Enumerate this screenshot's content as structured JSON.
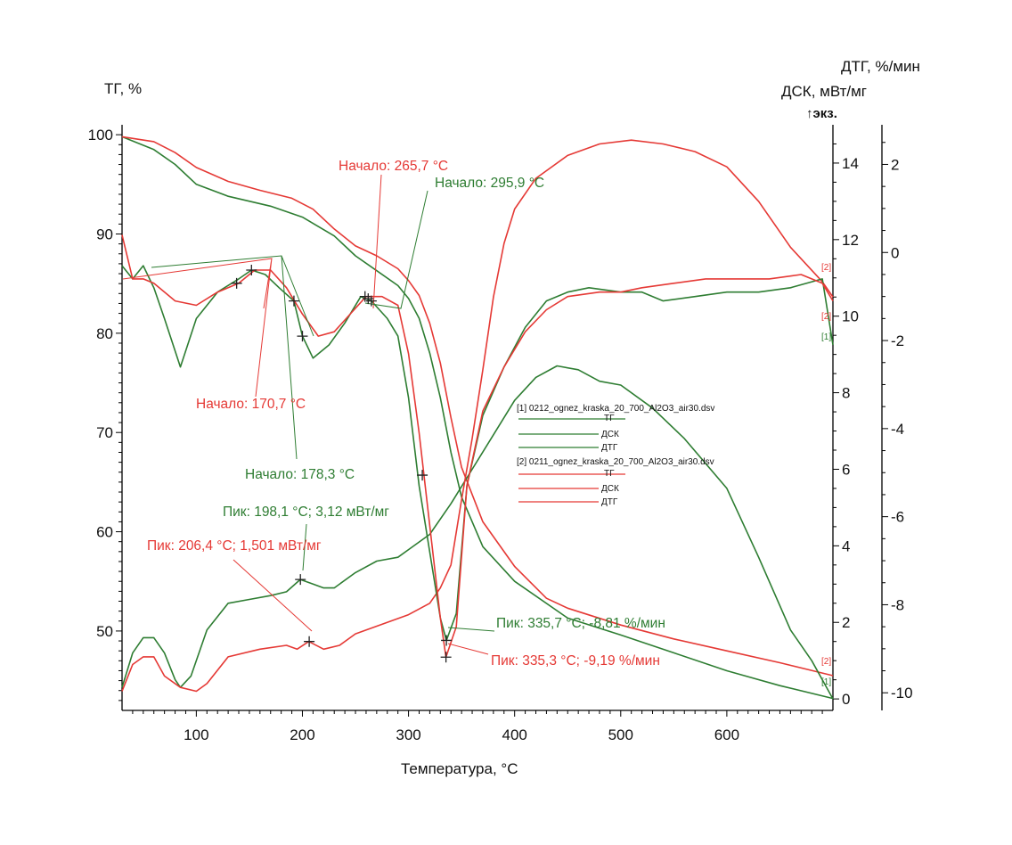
{
  "chart_data": {
    "type": "line",
    "title": "",
    "xlabel": "Температура, °C",
    "xlim": [
      30,
      700
    ],
    "x_ticks": [
      100,
      200,
      300,
      400,
      500,
      600
    ],
    "axes": {
      "tg": {
        "label": "ТГ, %",
        "lim": [
          42,
          101
        ],
        "ticks": [
          50,
          60,
          70,
          80,
          90,
          100
        ]
      },
      "dsc": {
        "label": "ДСК, мВт/мг",
        "marker": "↑экз.",
        "lim": [
          -0.3,
          15
        ],
        "ticks": [
          0,
          2,
          4,
          6,
          8,
          10,
          12,
          14
        ]
      },
      "dtg": {
        "label": "ДТГ, %/мин",
        "lim": [
          -10.4,
          2.9
        ],
        "ticks": [
          -10,
          -8,
          -6,
          -4,
          -2,
          0,
          2
        ]
      }
    },
    "colors": {
      "run1": "#2e7d32",
      "run2": "#e53935"
    },
    "legend": {
      "placement": "center-right",
      "groups": [
        {
          "file": "[1] 0212_ognez_kraska_20_700_Al2O3_air30.dsv",
          "color": "#2e7d32",
          "items": [
            "ТГ",
            "ДСК",
            "ДТГ"
          ]
        },
        {
          "file": "[2] 0211_ognez_kraska_20_700_Al2O3_air30.dsv",
          "color": "#e53935",
          "items": [
            "ТГ",
            "ДСК",
            "ДТГ"
          ]
        }
      ]
    },
    "series": [
      {
        "name": "ТГ",
        "run": "[1]",
        "axis": "tg",
        "color": "#2e7d32",
        "points": [
          [
            30,
            99.8
          ],
          [
            60,
            98.5
          ],
          [
            80,
            97
          ],
          [
            100,
            95
          ],
          [
            130,
            93.8
          ],
          [
            170,
            92.8
          ],
          [
            200,
            91.7
          ],
          [
            230,
            89.8
          ],
          [
            250,
            87.8
          ],
          [
            270,
            86.3
          ],
          [
            290,
            84.8
          ],
          [
            300,
            83.5
          ],
          [
            310,
            81.5
          ],
          [
            320,
            78
          ],
          [
            330,
            73.5
          ],
          [
            340,
            68
          ],
          [
            350,
            63.5
          ],
          [
            370,
            58.5
          ],
          [
            400,
            55
          ],
          [
            450,
            51.3
          ],
          [
            500,
            49.6
          ],
          [
            550,
            47.8
          ],
          [
            600,
            46
          ],
          [
            650,
            44.5
          ],
          [
            700,
            43.2
          ]
        ]
      },
      {
        "name": "ТГ",
        "run": "[2]",
        "axis": "tg",
        "color": "#e53935",
        "points": [
          [
            30,
            99.8
          ],
          [
            60,
            99.3
          ],
          [
            80,
            98.2
          ],
          [
            100,
            96.7
          ],
          [
            130,
            95.3
          ],
          [
            160,
            94.4
          ],
          [
            190,
            93.6
          ],
          [
            210,
            92.5
          ],
          [
            230,
            90.5
          ],
          [
            250,
            88.8
          ],
          [
            270,
            87.8
          ],
          [
            290,
            86.5
          ],
          [
            300,
            85.3
          ],
          [
            310,
            83.8
          ],
          [
            320,
            81
          ],
          [
            330,
            77
          ],
          [
            340,
            71.5
          ],
          [
            350,
            66.5
          ],
          [
            370,
            61
          ],
          [
            400,
            56.5
          ],
          [
            430,
            53.3
          ],
          [
            450,
            52.3
          ],
          [
            500,
            50.6
          ],
          [
            550,
            49.2
          ],
          [
            600,
            48
          ],
          [
            650,
            46.8
          ],
          [
            700,
            45.5
          ]
        ]
      },
      {
        "name": "ДСК",
        "run": "[1]",
        "axis": "dsc",
        "color": "#2e7d32",
        "points": [
          [
            30,
            0.3
          ],
          [
            40,
            1.2
          ],
          [
            50,
            1.6
          ],
          [
            60,
            1.6
          ],
          [
            70,
            1.2
          ],
          [
            80,
            0.5
          ],
          [
            85,
            0.3
          ],
          [
            95,
            0.6
          ],
          [
            110,
            1.8
          ],
          [
            130,
            2.5
          ],
          [
            150,
            2.6
          ],
          [
            170,
            2.7
          ],
          [
            185,
            2.8
          ],
          [
            198,
            3.12
          ],
          [
            210,
            3.0
          ],
          [
            220,
            2.9
          ],
          [
            230,
            2.9
          ],
          [
            250,
            3.3
          ],
          [
            270,
            3.6
          ],
          [
            290,
            3.7
          ],
          [
            300,
            3.9
          ],
          [
            320,
            4.3
          ],
          [
            340,
            5.1
          ],
          [
            360,
            6.0
          ],
          [
            380,
            6.9
          ],
          [
            400,
            7.8
          ],
          [
            420,
            8.4
          ],
          [
            440,
            8.7
          ],
          [
            460,
            8.6
          ],
          [
            480,
            8.3
          ],
          [
            500,
            8.2
          ],
          [
            530,
            7.6
          ],
          [
            560,
            6.8
          ],
          [
            600,
            5.5
          ],
          [
            630,
            3.7
          ],
          [
            660,
            1.8
          ],
          [
            680,
            1.0
          ],
          [
            700,
            0
          ]
        ]
      },
      {
        "name": "ДСК",
        "run": "[2]",
        "axis": "dsc",
        "color": "#e53935",
        "points": [
          [
            30,
            0.2
          ],
          [
            40,
            0.9
          ],
          [
            50,
            1.1
          ],
          [
            60,
            1.1
          ],
          [
            70,
            0.6
          ],
          [
            85,
            0.3
          ],
          [
            100,
            0.2
          ],
          [
            110,
            0.4
          ],
          [
            130,
            1.1
          ],
          [
            160,
            1.3
          ],
          [
            185,
            1.4
          ],
          [
            195,
            1.3
          ],
          [
            206,
            1.5
          ],
          [
            220,
            1.3
          ],
          [
            235,
            1.4
          ],
          [
            250,
            1.7
          ],
          [
            270,
            1.9
          ],
          [
            300,
            2.2
          ],
          [
            320,
            2.5
          ],
          [
            330,
            2.9
          ],
          [
            340,
            3.5
          ],
          [
            350,
            5.2
          ],
          [
            360,
            6.8
          ],
          [
            370,
            8.6
          ],
          [
            380,
            10.5
          ],
          [
            390,
            11.9
          ],
          [
            400,
            12.8
          ],
          [
            420,
            13.6
          ],
          [
            450,
            14.2
          ],
          [
            480,
            14.5
          ],
          [
            510,
            14.6
          ],
          [
            540,
            14.5
          ],
          [
            570,
            14.3
          ],
          [
            600,
            13.9
          ],
          [
            630,
            13.0
          ],
          [
            660,
            11.8
          ],
          [
            690,
            10.9
          ],
          [
            700,
            10.5
          ]
        ]
      },
      {
        "name": "ДТГ",
        "run": "[1]",
        "axis": "dtg",
        "color": "#2e7d32",
        "points": [
          [
            30,
            -0.3
          ],
          [
            40,
            -0.6
          ],
          [
            50,
            -0.3
          ],
          [
            60,
            -0.8
          ],
          [
            70,
            -1.5
          ],
          [
            85,
            -2.6
          ],
          [
            100,
            -1.5
          ],
          [
            120,
            -0.9
          ],
          [
            140,
            -0.6
          ],
          [
            152,
            -0.4
          ],
          [
            165,
            -0.5
          ],
          [
            178,
            -0.8
          ],
          [
            192,
            -1.1
          ],
          [
            200,
            -1.9
          ],
          [
            210,
            -2.4
          ],
          [
            225,
            -2.1
          ],
          [
            240,
            -1.6
          ],
          [
            255,
            -1.0
          ],
          [
            265,
            -1.1
          ],
          [
            280,
            -1.5
          ],
          [
            290,
            -1.9
          ],
          [
            300,
            -3.3
          ],
          [
            310,
            -5.3
          ],
          [
            320,
            -6.8
          ],
          [
            330,
            -8.3
          ],
          [
            335.7,
            -8.81
          ],
          [
            345,
            -8.2
          ],
          [
            355,
            -5.3
          ],
          [
            370,
            -3.7
          ],
          [
            390,
            -2.6
          ],
          [
            410,
            -1.7
          ],
          [
            430,
            -1.1
          ],
          [
            450,
            -0.9
          ],
          [
            470,
            -0.8
          ],
          [
            500,
            -0.9
          ],
          [
            520,
            -0.9
          ],
          [
            540,
            -1.1
          ],
          [
            570,
            -1.0
          ],
          [
            600,
            -0.9
          ],
          [
            630,
            -0.9
          ],
          [
            660,
            -0.8
          ],
          [
            690,
            -0.6
          ],
          [
            700,
            -2.1
          ]
        ]
      },
      {
        "name": "ДТГ",
        "run": "[2]",
        "axis": "dtg",
        "color": "#e53935",
        "points": [
          [
            30,
            0.4
          ],
          [
            40,
            -0.6
          ],
          [
            50,
            -0.6
          ],
          [
            60,
            -0.7
          ],
          [
            80,
            -1.1
          ],
          [
            100,
            -1.2
          ],
          [
            120,
            -0.9
          ],
          [
            140,
            -0.7
          ],
          [
            155,
            -0.4
          ],
          [
            170,
            -0.4
          ],
          [
            185,
            -0.8
          ],
          [
            200,
            -1.4
          ],
          [
            215,
            -1.9
          ],
          [
            230,
            -1.8
          ],
          [
            245,
            -1.4
          ],
          [
            260,
            -1.0
          ],
          [
            275,
            -1.0
          ],
          [
            290,
            -1.2
          ],
          [
            300,
            -2.3
          ],
          [
            310,
            -4.1
          ],
          [
            320,
            -6.2
          ],
          [
            330,
            -8.3
          ],
          [
            335.3,
            -9.19
          ],
          [
            345,
            -8.5
          ],
          [
            355,
            -5.3
          ],
          [
            370,
            -3.6
          ],
          [
            390,
            -2.6
          ],
          [
            410,
            -1.8
          ],
          [
            430,
            -1.3
          ],
          [
            450,
            -1.0
          ],
          [
            480,
            -0.9
          ],
          [
            500,
            -0.9
          ],
          [
            520,
            -0.8
          ],
          [
            550,
            -0.7
          ],
          [
            580,
            -0.6
          ],
          [
            610,
            -0.6
          ],
          [
            640,
            -0.6
          ],
          [
            670,
            -0.5
          ],
          [
            690,
            -0.7
          ],
          [
            700,
            -1.1
          ]
        ]
      }
    ],
    "markers": [
      {
        "run": "[1]",
        "axis": "dtg",
        "x": 152,
        "y": -0.4
      },
      {
        "run": "[1]",
        "axis": "dtg",
        "x": 192,
        "y": -1.1
      },
      {
        "run": "[1]",
        "axis": "dtg",
        "x": 200,
        "y": -1.9
      },
      {
        "run": "[1]",
        "axis": "dtg",
        "x": 259,
        "y": -1.0
      },
      {
        "run": "[1]",
        "axis": "dtg",
        "x": 265,
        "y": -1.1
      },
      {
        "run": "[2]",
        "axis": "dtg",
        "x": 138,
        "y": -0.7
      },
      {
        "run": "[2]",
        "axis": "dtg",
        "x": 262,
        "y": -1.05
      },
      {
        "run": "[2]",
        "axis": "tg",
        "x": 313,
        "y": 65.7
      },
      {
        "run": "[1]",
        "axis": "dsc",
        "x": 198.1,
        "y": 3.12
      },
      {
        "run": "[2]",
        "axis": "dsc",
        "x": 206.4,
        "y": 1.5
      },
      {
        "run": "[1]",
        "axis": "dtg",
        "x": 335.7,
        "y": -8.81
      },
      {
        "run": "[2]",
        "axis": "dtg",
        "x": 335.3,
        "y": -9.19
      }
    ],
    "annotations": [
      {
        "text": "Начало: 265,7 °C",
        "color": "#e53935"
      },
      {
        "text": "Начало: 295,9 °C",
        "color": "#2e7d32"
      },
      {
        "text": "Начало: 170,7 °C",
        "color": "#e53935"
      },
      {
        "text": "Начало: 178,3 °C",
        "color": "#2e7d32"
      },
      {
        "text": "Пик: 198,1 °C; 3,12 мВт/мг",
        "color": "#2e7d32"
      },
      {
        "text": "Пик: 206,4 °C; 1,501 мВт/мг",
        "color": "#e53935"
      },
      {
        "text": "Пик: 335,7 °C; -8,81 %/мин",
        "color": "#2e7d32"
      },
      {
        "text": "Пик: 335,3 °C; -9,19 %/мин",
        "color": "#e53935"
      }
    ],
    "end_tags": [
      {
        "text": "[2]",
        "color": "#e53935"
      },
      {
        "text": "[2]",
        "color": "#e53935"
      },
      {
        "text": "[1]",
        "color": "#2e7d32"
      },
      {
        "text": "[2]",
        "color": "#e53935"
      },
      {
        "text": "[1]",
        "color": "#2e7d32"
      }
    ]
  }
}
